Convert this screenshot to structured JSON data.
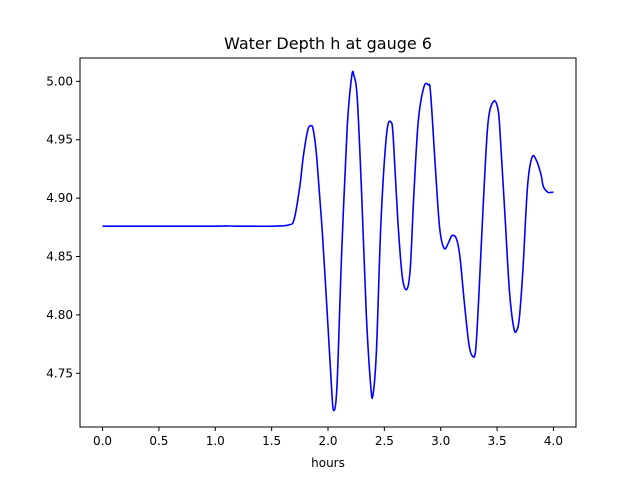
{
  "chart_data": {
    "type": "line",
    "title": "Water Depth h at gauge 6",
    "xlabel": "hours",
    "ylabel": "",
    "xlim": [
      -0.2,
      4.2
    ],
    "ylim": [
      4.704,
      5.02
    ],
    "grid": false,
    "x_ticks": [
      0.0,
      0.5,
      1.0,
      1.5,
      2.0,
      2.5,
      3.0,
      3.5,
      4.0
    ],
    "x_tick_labels": [
      "0.0",
      "0.5",
      "1.0",
      "1.5",
      "2.0",
      "2.5",
      "3.0",
      "3.5",
      "4.0"
    ],
    "y_ticks": [
      4.75,
      4.8,
      4.85,
      4.9,
      4.95,
      5.0
    ],
    "y_tick_labels": [
      "4.75",
      "4.80",
      "4.85",
      "4.90",
      "4.95",
      "5.00"
    ],
    "line_color": "#0000ff",
    "series": [
      {
        "x": [
          0.0,
          0.5,
          1.0,
          1.1,
          1.2,
          1.5,
          1.65,
          1.7,
          1.75,
          1.78,
          1.82,
          1.85,
          1.87,
          1.9,
          1.95,
          2.0,
          2.03,
          2.05,
          2.08,
          2.12,
          2.17,
          2.21,
          2.23,
          2.26,
          2.3,
          2.34,
          2.38,
          2.4,
          2.43,
          2.47,
          2.52,
          2.56,
          2.58,
          2.62,
          2.66,
          2.7,
          2.73,
          2.76,
          2.8,
          2.85,
          2.89,
          2.91,
          2.95,
          2.99,
          3.03,
          3.07,
          3.1,
          3.14,
          3.17,
          3.21,
          3.25,
          3.28,
          3.31,
          3.34,
          3.38,
          3.42,
          3.47,
          3.51,
          3.53,
          3.57,
          3.61,
          3.65,
          3.68,
          3.7,
          3.73,
          3.77,
          3.81,
          3.85,
          3.89,
          3.91,
          3.95,
          3.98,
          4.0
        ],
        "y": [
          4.876,
          4.876,
          4.876,
          4.8762,
          4.876,
          4.876,
          4.877,
          4.882,
          4.91,
          4.935,
          4.958,
          4.962,
          4.958,
          4.935,
          4.87,
          4.79,
          4.74,
          4.718,
          4.74,
          4.85,
          4.96,
          5.004,
          5.005,
          4.985,
          4.9,
          4.8,
          4.738,
          4.732,
          4.77,
          4.88,
          4.955,
          4.965,
          4.95,
          4.88,
          4.832,
          4.822,
          4.84,
          4.9,
          4.965,
          4.995,
          4.997,
          4.99,
          4.93,
          4.875,
          4.857,
          4.862,
          4.868,
          4.865,
          4.85,
          4.81,
          4.775,
          4.765,
          4.77,
          4.82,
          4.9,
          4.965,
          4.983,
          4.975,
          4.95,
          4.885,
          4.82,
          4.788,
          4.788,
          4.8,
          4.84,
          4.91,
          4.935,
          4.932,
          4.92,
          4.91,
          4.905,
          4.905,
          4.905
        ]
      }
    ]
  }
}
